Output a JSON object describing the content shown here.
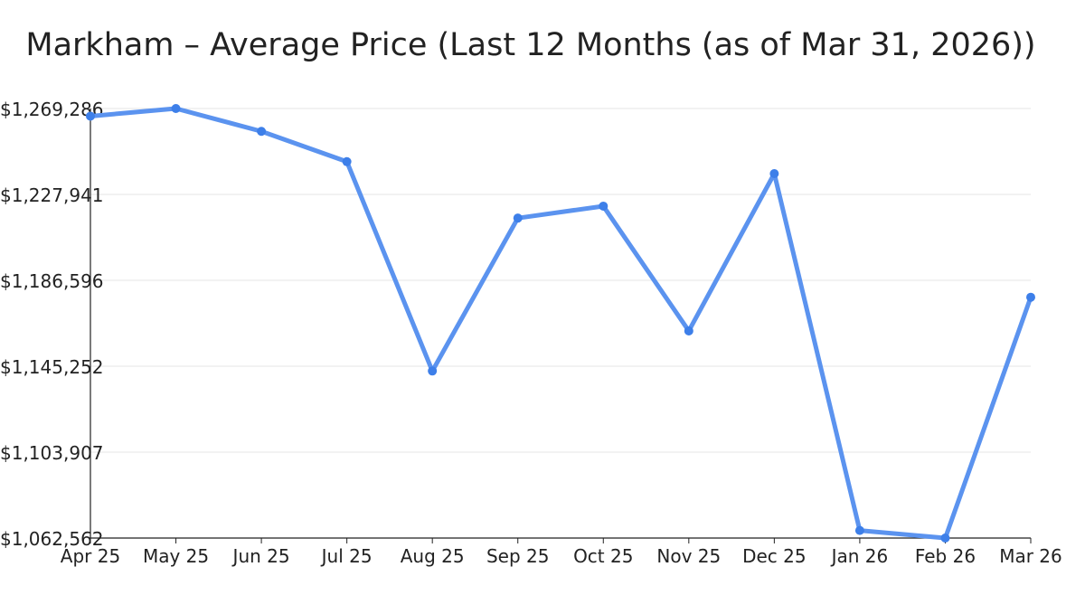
{
  "chart_data": {
    "type": "line",
    "title": "Markham – Average Price (Last 12 Months (as of Mar 31, 2026))",
    "xlabel": "",
    "ylabel": "",
    "categories": [
      "Apr 25",
      "May 25",
      "Jun 25",
      "Jul 25",
      "Aug 25",
      "Sep 25",
      "Oct 25",
      "Nov 25",
      "Dec 25",
      "Jan 26",
      "Feb 26",
      "Mar 26"
    ],
    "values": [
      1265600,
      1269286,
      1258300,
      1243700,
      1142950,
      1216550,
      1222300,
      1162250,
      1237950,
      1066200,
      1062562,
      1178450
    ],
    "ylim": [
      1062562,
      1269286
    ],
    "yticks": [
      1062562,
      1103907,
      1145252,
      1186596,
      1227941,
      1269286
    ],
    "ytick_labels": [
      "$1,062,562",
      "$1,103,907",
      "$1,145,252",
      "$1,186,596",
      "$1,227,941",
      "$1,269,286"
    ],
    "grid": true,
    "legend": "none",
    "colors": {
      "line": "#5b93ef",
      "marker": "#3d7fe9",
      "grid": "#e6e6e6",
      "axis": "#222222"
    }
  }
}
